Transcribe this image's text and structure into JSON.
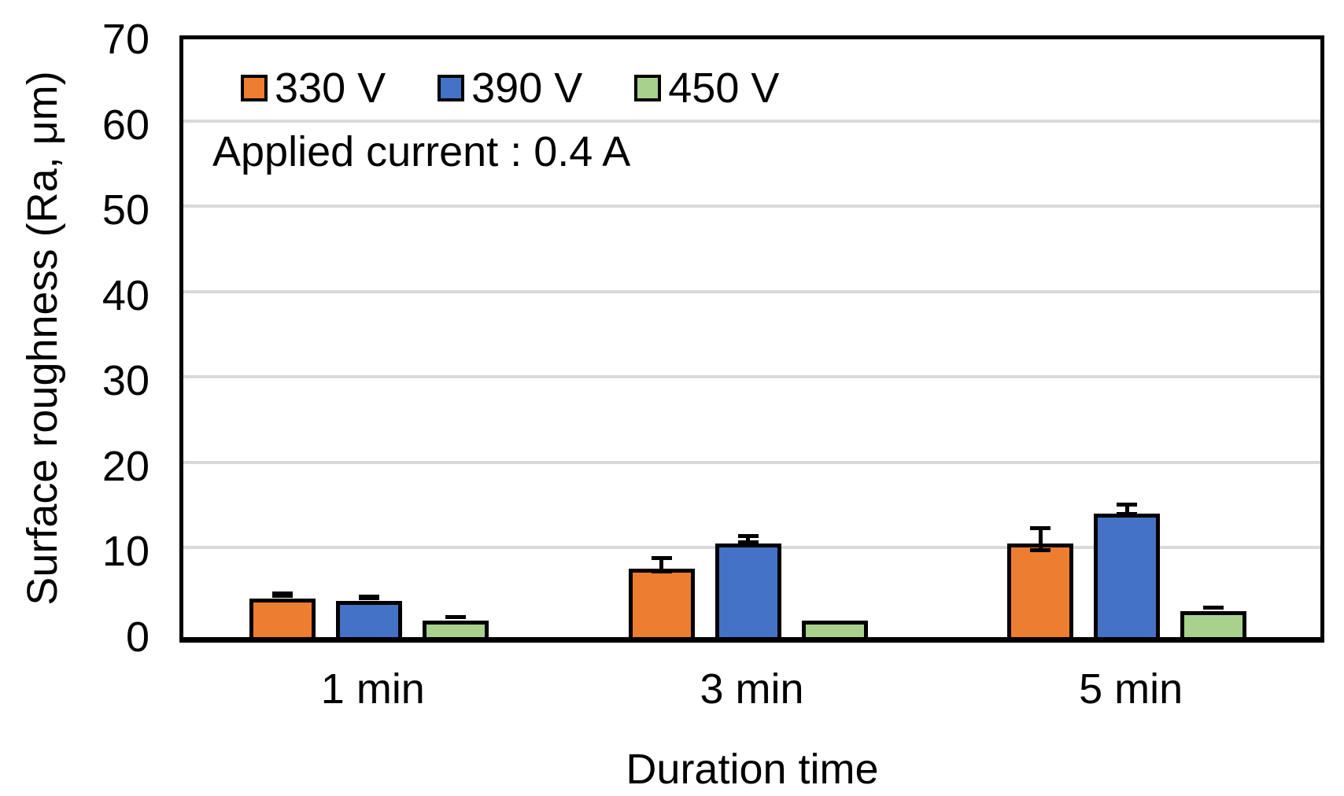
{
  "chart_data": {
    "type": "bar",
    "title": "",
    "xlabel": "Duration time",
    "ylabel": "Surface roughness (Ra, μm)",
    "annotation": "Applied current : 0.4 A",
    "categories": [
      "1 min",
      "3 min",
      "5 min"
    ],
    "series": [
      {
        "name": "330 V",
        "color": "#ED7D31",
        "values": [
          4.5,
          8.0,
          11.0
        ],
        "errors": [
          0.4,
          1.0,
          1.5
        ]
      },
      {
        "name": "390 V",
        "color": "#4472C4",
        "values": [
          4.2,
          11.0,
          14.5
        ],
        "errors": [
          0.35,
          0.6,
          0.8
        ]
      },
      {
        "name": "450 V",
        "color": "#A9D18E",
        "values": [
          1.9,
          1.9,
          3.0
        ],
        "errors": [
          0.2,
          0,
          0.25
        ]
      }
    ],
    "ylim": [
      0,
      70
    ],
    "ytick_step": 10,
    "yticks": [
      "0",
      "10",
      "20",
      "30",
      "40",
      "50",
      "60",
      "70"
    ],
    "grid": true,
    "legend_position": "inside-top-left",
    "colors": {
      "grid": "#D9D9D9",
      "axis": "#000000",
      "bar_border": "#000000",
      "error_bar": "#000000",
      "text": "#000000",
      "background": "#FFFFFF"
    }
  }
}
